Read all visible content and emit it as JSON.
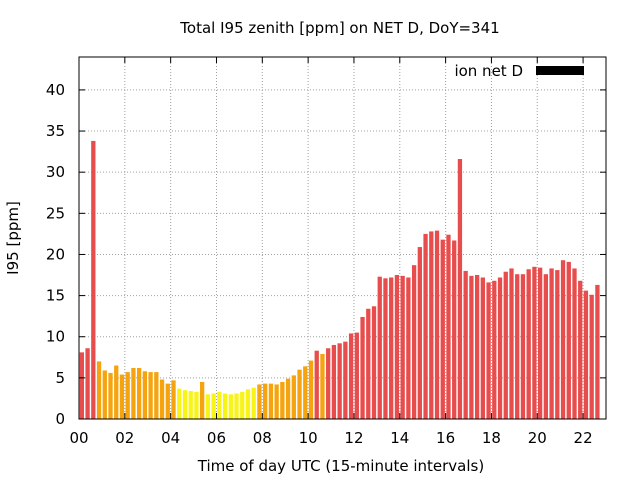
{
  "chart_data": {
    "type": "bar",
    "title": "Total I95 zenith [ppm] on NET D, DoY=341",
    "xlabel": "Time of day UTC (15-minute intervals)",
    "ylabel": "I95 [ppm]",
    "legend": {
      "label": "ion net D",
      "position": "top-right",
      "color": "#000000"
    },
    "xlim": [
      0,
      92
    ],
    "ylim": [
      0,
      44
    ],
    "grid": true,
    "interval_minutes": 15,
    "x_tick_positions": [
      0,
      8,
      16,
      24,
      32,
      40,
      48,
      56,
      64,
      72,
      80,
      88
    ],
    "x_tick_labels": [
      "00",
      "02",
      "04",
      "06",
      "08",
      "10",
      "12",
      "14",
      "16",
      "18",
      "20",
      "22"
    ],
    "y_ticks": [
      0,
      5,
      10,
      15,
      20,
      25,
      30,
      35,
      40
    ],
    "values": [
      8.1,
      8.6,
      33.8,
      7.0,
      5.9,
      5.6,
      6.5,
      5.4,
      5.7,
      6.2,
      6.2,
      5.8,
      5.7,
      5.7,
      4.8,
      4.3,
      4.7,
      3.7,
      3.5,
      3.4,
      3.3,
      4.5,
      3.0,
      3.1,
      3.3,
      3.1,
      3.0,
      3.1,
      3.3,
      3.6,
      3.8,
      4.2,
      4.3,
      4.3,
      4.2,
      4.5,
      4.9,
      5.3,
      6.0,
      6.4,
      7.1,
      8.3,
      7.9,
      8.6,
      9.0,
      9.2,
      9.4,
      10.4,
      10.5,
      12.4,
      13.4,
      13.7,
      17.3,
      17.1,
      17.2,
      17.5,
      17.4,
      17.2,
      18.7,
      20.9,
      22.5,
      22.8,
      22.9,
      21.8,
      22.4,
      21.7,
      31.6,
      18.0,
      17.4,
      17.5,
      17.2,
      16.6,
      16.8,
      17.2,
      17.9,
      18.3,
      17.6,
      17.6,
      18.2,
      18.5,
      18.4,
      17.6,
      18.3,
      18.1,
      19.3,
      19.1,
      18.3,
      16.8,
      15.6,
      15.1,
      16.3
    ],
    "category_colors": {
      "red": "#e84d4d",
      "orange": "#f5a40f",
      "yellow": "#f8f418"
    },
    "bar_categories": [
      "red",
      "red",
      "red",
      "orange",
      "orange",
      "orange",
      "orange",
      "orange",
      "orange",
      "orange",
      "orange",
      "orange",
      "orange",
      "orange",
      "orange",
      "orange",
      "orange",
      "yellow",
      "yellow",
      "yellow",
      "yellow",
      "orange",
      "yellow",
      "yellow",
      "yellow",
      "yellow",
      "yellow",
      "yellow",
      "yellow",
      "yellow",
      "yellow",
      "orange",
      "orange",
      "orange",
      "orange",
      "orange",
      "orange",
      "orange",
      "orange",
      "orange",
      "orange",
      "red",
      "orange",
      "red",
      "red",
      "red",
      "red",
      "red",
      "red",
      "red",
      "red",
      "red",
      "red",
      "red",
      "red",
      "red",
      "red",
      "red",
      "red",
      "red",
      "red",
      "red",
      "red",
      "red",
      "red",
      "red",
      "red",
      "red",
      "red",
      "red",
      "red",
      "red",
      "red",
      "red",
      "red",
      "red",
      "red",
      "red",
      "red",
      "red",
      "red",
      "red",
      "red",
      "red",
      "red",
      "red",
      "red",
      "red",
      "red",
      "red",
      "red"
    ]
  }
}
